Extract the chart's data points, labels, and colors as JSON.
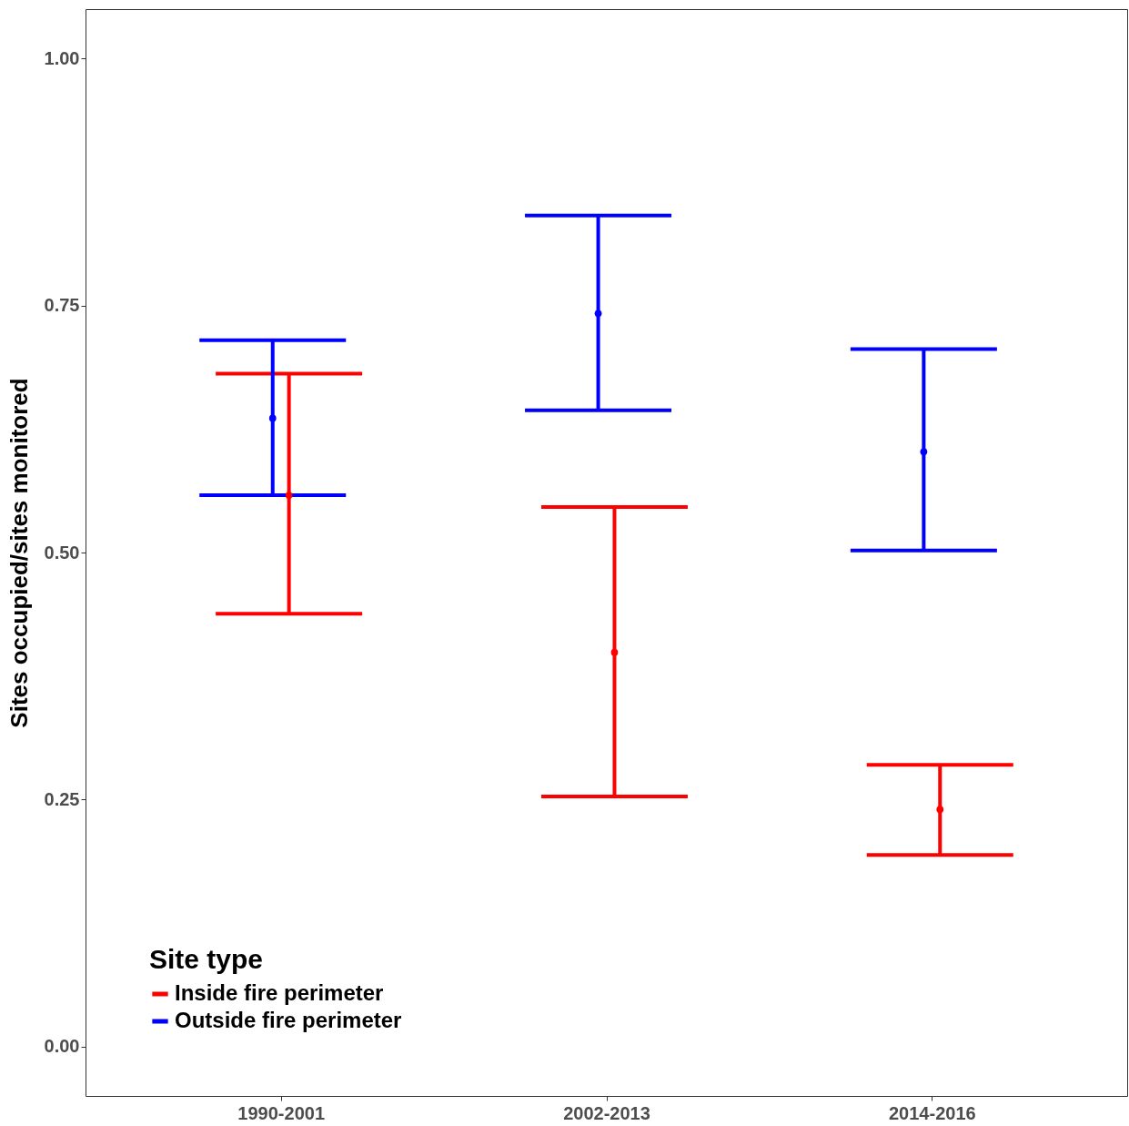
{
  "chart_data": {
    "type": "scatter",
    "ylabel": "Sites occupied/sites monitored",
    "legend_title": "Site type",
    "categories": [
      "1990-2001",
      "2002-2013",
      "2014-2016"
    ],
    "series": [
      {
        "name": "Inside fire perimeter",
        "color": "#ff0000",
        "values": [
          0.558,
          0.399,
          0.24
        ],
        "errors": [
          [
            0.438,
            0.681
          ],
          [
            0.253,
            0.546
          ],
          [
            0.194,
            0.285
          ]
        ]
      },
      {
        "name": "Outside fire perimeter",
        "color": "#0000ff",
        "values": [
          0.636,
          0.742,
          0.602
        ],
        "errors": [
          [
            0.558,
            0.715
          ],
          [
            0.644,
            0.841
          ],
          [
            0.502,
            0.706
          ]
        ]
      }
    ],
    "ylim": [
      -0.05,
      1.05
    ],
    "yticks": [
      {
        "value": 0,
        "label": "0.00"
      },
      {
        "value": 0.25,
        "label": "0.25"
      },
      {
        "value": 0.5,
        "label": "0.50"
      },
      {
        "value": 0.75,
        "label": "0.75"
      },
      {
        "value": 1,
        "label": "1.00"
      }
    ],
    "grid": false,
    "legend": "bottom left",
    "marker": "circle"
  }
}
